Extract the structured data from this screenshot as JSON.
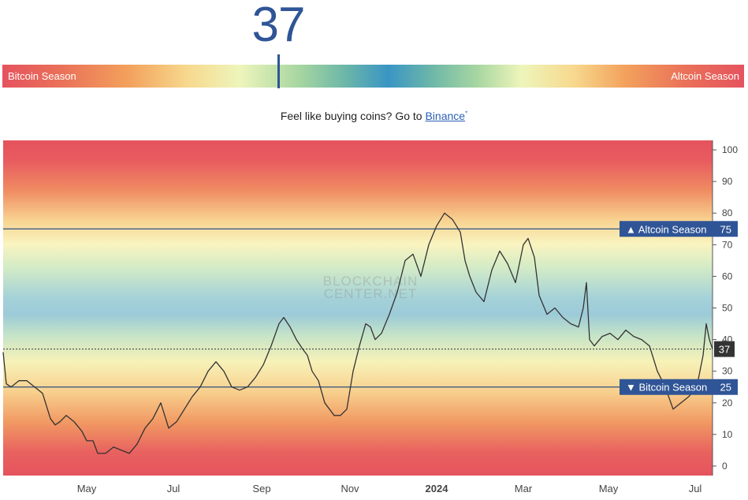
{
  "index": {
    "value": "37",
    "fraction": 0.37,
    "left_label": "Bitcoin Season",
    "right_label": "Altcoin Season"
  },
  "promo": {
    "text": "Feel like buying coins? Go to ",
    "link": "Binance",
    "sup": "*"
  },
  "colors": {
    "accent": "#2f5596",
    "line": "#333333",
    "marker_bg": "#2f5596",
    "current_bg": "#333333",
    "red": "#e5535e",
    "orange": "#f3a15c",
    "yellow": "#f7f0b0",
    "blue": "#9ccad8"
  },
  "chart_data": {
    "type": "line",
    "ylim": [
      -3,
      103
    ],
    "y_ticks": [
      "0",
      "10",
      "20",
      "30",
      "40",
      "50",
      "60",
      "70",
      "80",
      "90",
      "100"
    ],
    "x_range": [
      0,
      450
    ],
    "x_ticks": [
      {
        "label": "May",
        "x": 53,
        "bold": false
      },
      {
        "label": "Jul",
        "x": 108,
        "bold": false
      },
      {
        "label": "Sep",
        "x": 164,
        "bold": false
      },
      {
        "label": "Nov",
        "x": 220,
        "bold": false
      },
      {
        "label": "2024",
        "x": 275,
        "bold": true
      },
      {
        "label": "Mar",
        "x": 330,
        "bold": false
      },
      {
        "label": "May",
        "x": 384,
        "bold": false
      },
      {
        "label": "Jul",
        "x": 439,
        "bold": false
      }
    ],
    "thresholds": [
      {
        "label": "▲ Altcoin Season",
        "value": 75
      },
      {
        "label": "▼ Bitcoin Season",
        "value": 25
      }
    ],
    "current": {
      "label": "37",
      "value": 37
    },
    "watermark": [
      "BLOCKCHAIN",
      "CENTER.NET"
    ],
    "series": [
      {
        "x": [
          0,
          2,
          5,
          10,
          15,
          20,
          25,
          30,
          33,
          36,
          40,
          45,
          50,
          53,
          57,
          60,
          65,
          70,
          75,
          80,
          85,
          90,
          95,
          100,
          105,
          110,
          115,
          120,
          125,
          130,
          135,
          140,
          145,
          150,
          155,
          160,
          165,
          170,
          175,
          178,
          182,
          186,
          190,
          193,
          196,
          200,
          204,
          207,
          210,
          214,
          218,
          222,
          226,
          230,
          233,
          236,
          240,
          245,
          250,
          255,
          260,
          265,
          270,
          275,
          280,
          285,
          290,
          293,
          296,
          300,
          305,
          310,
          315,
          320,
          325,
          330,
          333,
          337,
          340,
          345,
          350,
          355,
          360,
          365,
          368,
          370,
          372,
          375,
          380,
          385,
          390,
          395,
          400,
          405,
          410,
          415,
          420,
          425,
          430,
          435,
          440,
          444,
          446,
          448,
          450
        ],
        "y": [
          36,
          26,
          25,
          27,
          27,
          25,
          23,
          15,
          13,
          14,
          16,
          14,
          11,
          8,
          8,
          4,
          4,
          6,
          5,
          4,
          7,
          12,
          15,
          20,
          12,
          14,
          18,
          22,
          25,
          30,
          33,
          30,
          25,
          24,
          25,
          28,
          32,
          38,
          45,
          47,
          44,
          40,
          37,
          35,
          30,
          27,
          20,
          18,
          16,
          16,
          18,
          30,
          38,
          45,
          44,
          40,
          42,
          48,
          55,
          65,
          67,
          60,
          70,
          76,
          80,
          78,
          74,
          65,
          60,
          55,
          52,
          62,
          68,
          64,
          58,
          70,
          72,
          66,
          54,
          48,
          50,
          47,
          45,
          44,
          50,
          58,
          40,
          38,
          41,
          42,
          40,
          43,
          41,
          40,
          38,
          30,
          25,
          18,
          20,
          22,
          25,
          35,
          45,
          40,
          37
        ]
      }
    ]
  }
}
